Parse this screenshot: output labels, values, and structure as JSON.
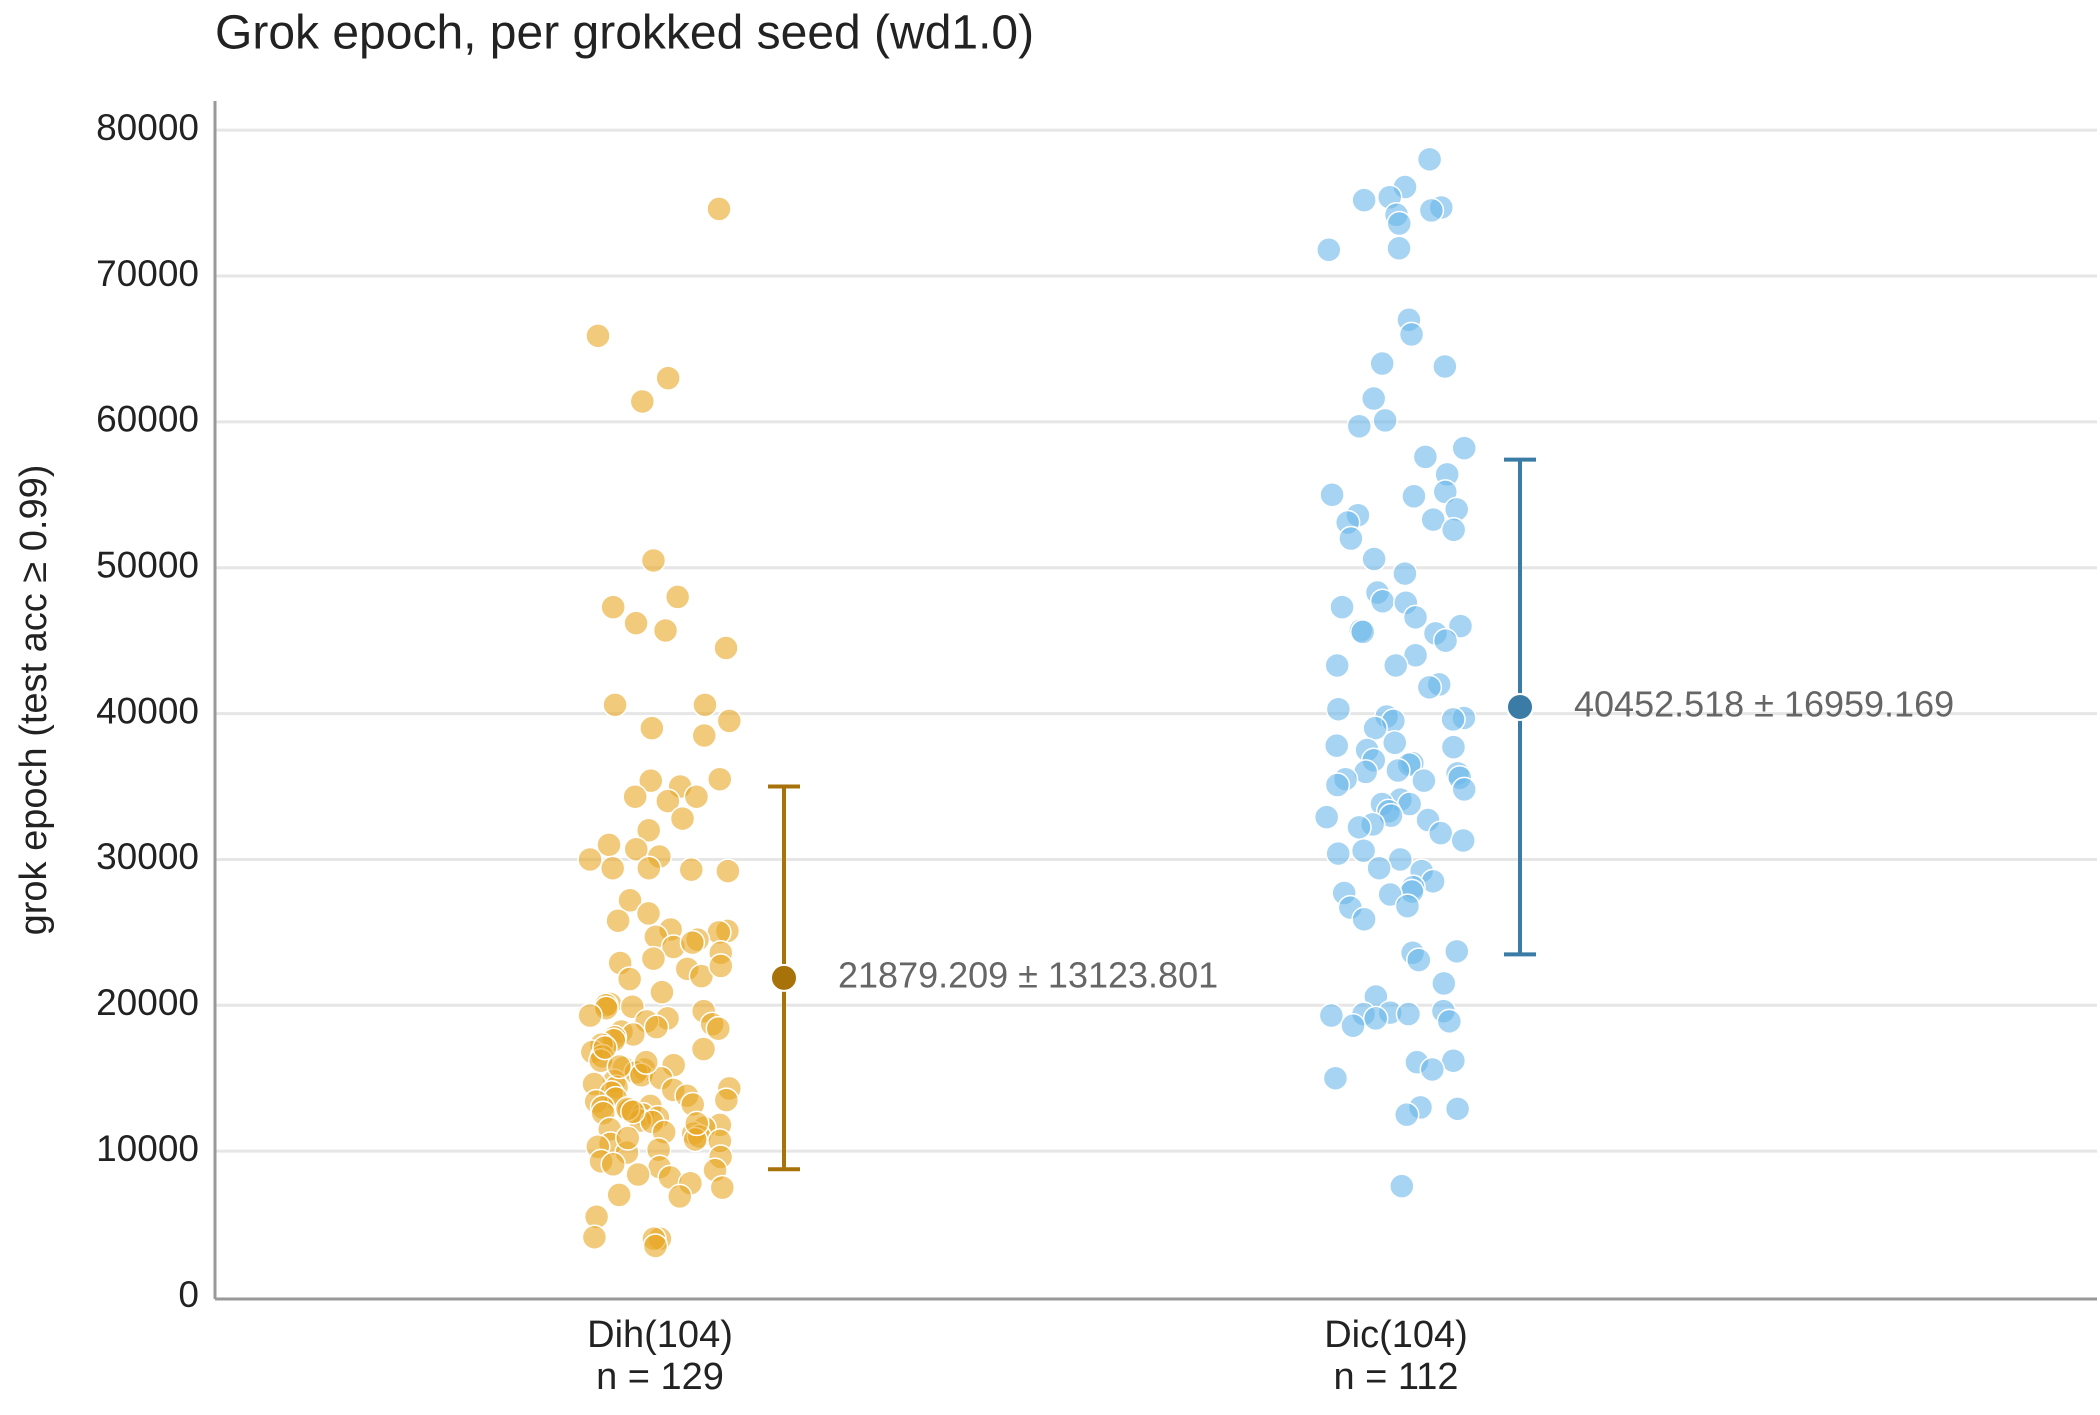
{
  "chart_data": {
    "type": "strip",
    "title": "Grok epoch, per grokked seed (wd1.0)",
    "y_label": "grok epoch (test acc ≥ 0.99)",
    "categories": [
      "Dih(104)",
      "Dic(104)"
    ],
    "sublabels": [
      "n = 129",
      "n = 112"
    ],
    "ylim": [
      0,
      82000
    ],
    "yticks": [
      0,
      10000,
      20000,
      30000,
      40000,
      50000,
      60000,
      70000,
      80000
    ],
    "grid": true,
    "series": [
      {
        "name": "Dih(104)",
        "color": "#e8a623",
        "mean_color": "#a8720b",
        "mean": 21879.209,
        "std": 13123.801,
        "summary_label": "21879.209 ± 13123.801",
        "values": [
          74600,
          65900,
          63000,
          61400,
          50500,
          48000,
          47300,
          46200,
          45700,
          44500,
          40600,
          40600,
          39500,
          38500,
          39000,
          35500,
          35400,
          35000,
          34300,
          34300,
          34000,
          32800,
          32000,
          31000,
          30700,
          30200,
          30000,
          29400,
          29400,
          29200,
          29300,
          27200,
          26300,
          25800,
          25200,
          25100,
          25000,
          24700,
          24500,
          24000,
          23600,
          23200,
          22900,
          22500,
          22000,
          21800,
          20900,
          20100,
          20000,
          19900,
          19800,
          19600,
          19100,
          18900,
          18700,
          18500,
          18200,
          18000,
          17800,
          17600,
          17300,
          17000,
          16800,
          16500,
          16200,
          15900,
          15700,
          15600,
          15400,
          15200,
          15000,
          14800,
          14600,
          14400,
          14200,
          14000,
          13800,
          13600,
          13400,
          13200,
          13100,
          13000,
          12800,
          12600,
          12500,
          12300,
          12100,
          12000,
          11800,
          11600,
          11500,
          11300,
          11200,
          11000,
          10800,
          10700,
          10500,
          10300,
          10100,
          9900,
          9600,
          9300,
          9100,
          8900,
          8700,
          8400,
          8200,
          7800,
          7500,
          7000,
          6900,
          5500,
          4100,
          4000,
          4000,
          3500,
          18400,
          16100,
          14300,
          12900,
          11900,
          13500,
          17100,
          19300,
          24300,
          12700,
          15800,
          22700,
          10900
        ]
      },
      {
        "name": "Dic(104)",
        "color": "#6bb8ea",
        "mean_color": "#3a7ca5",
        "mean": 40452.518,
        "std": 16959.169,
        "summary_label": "40452.518 ± 16959.169",
        "values": [
          78000,
          76100,
          75400,
          75200,
          74700,
          74500,
          74200,
          73600,
          71900,
          71800,
          67000,
          66000,
          64000,
          63800,
          61600,
          60100,
          59700,
          58200,
          57600,
          56400,
          55200,
          55000,
          54900,
          54000,
          53600,
          53300,
          53100,
          52600,
          52000,
          50600,
          49600,
          48300,
          47700,
          47600,
          47300,
          46600,
          46000,
          45700,
          45600,
          45500,
          45000,
          44000,
          43300,
          43300,
          42000,
          41800,
          40300,
          39800,
          39700,
          39600,
          39500,
          39000,
          38000,
          37800,
          37700,
          37500,
          36800,
          36600,
          36500,
          36100,
          36000,
          35900,
          35600,
          35500,
          35400,
          35100,
          34800,
          34100,
          33800,
          33800,
          33300,
          33000,
          32900,
          32700,
          32400,
          32200,
          31800,
          31300,
          30600,
          30400,
          30000,
          29400,
          29200,
          28500,
          28100,
          27800,
          27700,
          27600,
          26800,
          26700,
          25900,
          23700,
          23600,
          23100,
          21500,
          20600,
          19600,
          19500,
          19400,
          19400,
          19300,
          19100,
          18900,
          18600,
          16200,
          16100,
          15600,
          15000,
          13000,
          12900,
          12500,
          7600
        ]
      }
    ]
  }
}
